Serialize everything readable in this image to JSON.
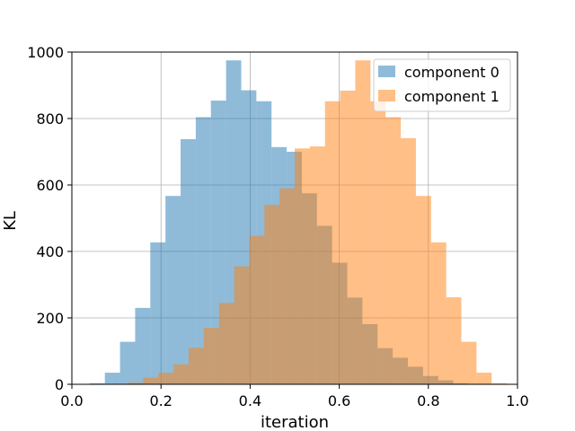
{
  "chart_data": {
    "type": "histogram",
    "xlabel": "iteration",
    "ylabel": "KL",
    "xlim": [
      0.0,
      1.0
    ],
    "ylim": [
      0,
      1000
    ],
    "xticks": [
      "0.0",
      "0.2",
      "0.4",
      "0.6",
      "0.8",
      "1.0"
    ],
    "yticks": [
      "0",
      "200",
      "400",
      "600",
      "800",
      "1000"
    ],
    "grid": true,
    "legend_position": "top-right",
    "series": [
      {
        "name": "component 0",
        "color": "#1f77b4",
        "opacity": 0.5,
        "bins": [
          [
            0.04,
            0.074,
            3
          ],
          [
            0.074,
            0.108,
            35
          ],
          [
            0.108,
            0.142,
            128
          ],
          [
            0.142,
            0.176,
            230
          ],
          [
            0.176,
            0.21,
            427
          ],
          [
            0.21,
            0.244,
            567
          ],
          [
            0.244,
            0.278,
            738
          ],
          [
            0.278,
            0.312,
            804
          ],
          [
            0.312,
            0.346,
            854
          ],
          [
            0.346,
            0.38,
            975
          ],
          [
            0.38,
            0.414,
            885
          ],
          [
            0.414,
            0.448,
            852
          ],
          [
            0.448,
            0.482,
            714
          ],
          [
            0.482,
            0.516,
            700
          ],
          [
            0.516,
            0.55,
            575
          ],
          [
            0.55,
            0.584,
            477
          ],
          [
            0.584,
            0.618,
            366
          ],
          [
            0.618,
            0.652,
            261
          ],
          [
            0.652,
            0.686,
            181
          ],
          [
            0.686,
            0.72,
            109
          ],
          [
            0.72,
            0.754,
            80
          ],
          [
            0.754,
            0.788,
            53
          ],
          [
            0.788,
            0.822,
            25
          ],
          [
            0.822,
            0.856,
            12
          ],
          [
            0.856,
            0.89,
            3
          ]
        ]
      },
      {
        "name": "component 1",
        "color": "#ff7f0e",
        "opacity": 0.5,
        "bins": [
          [
            0.126,
            0.16,
            5
          ],
          [
            0.16,
            0.194,
            20
          ],
          [
            0.194,
            0.228,
            35
          ],
          [
            0.228,
            0.262,
            60
          ],
          [
            0.262,
            0.296,
            110
          ],
          [
            0.296,
            0.33,
            170
          ],
          [
            0.33,
            0.364,
            245
          ],
          [
            0.364,
            0.398,
            355
          ],
          [
            0.398,
            0.432,
            447
          ],
          [
            0.432,
            0.466,
            540
          ],
          [
            0.466,
            0.5,
            590
          ],
          [
            0.5,
            0.534,
            710
          ],
          [
            0.534,
            0.568,
            716
          ],
          [
            0.568,
            0.602,
            852
          ],
          [
            0.602,
            0.636,
            884
          ],
          [
            0.636,
            0.67,
            975
          ],
          [
            0.67,
            0.704,
            852
          ],
          [
            0.704,
            0.738,
            804
          ],
          [
            0.738,
            0.772,
            741
          ],
          [
            0.772,
            0.806,
            567
          ],
          [
            0.806,
            0.84,
            427
          ],
          [
            0.84,
            0.874,
            262
          ],
          [
            0.874,
            0.908,
            128
          ],
          [
            0.908,
            0.942,
            35
          ],
          [
            0.942,
            0.976,
            3
          ]
        ]
      }
    ]
  }
}
